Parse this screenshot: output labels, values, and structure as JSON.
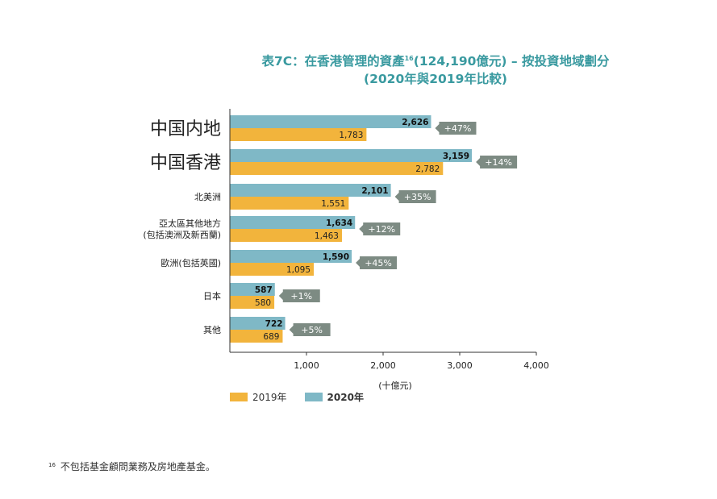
{
  "title": {
    "line1_pre": "表7C：在香港管理的資產",
    "line1_sup": "16",
    "line1_post": "(124,190億元) – 按投資地域劃分",
    "line2": "(2020年與2019年比較)"
  },
  "footnote": {
    "marker": "16",
    "text": "不包括基金顧問業務及房地產基金。"
  },
  "colors": {
    "series_2020": "#7fb8c6",
    "series_2019": "#f2b43c",
    "badge": "#7d8b83",
    "title": "#3a9aa0"
  },
  "chart_data": {
    "type": "bar",
    "orientation": "horizontal",
    "categories": [
      [
        "中国内地"
      ],
      [
        "中国香港"
      ],
      [
        "北美洲"
      ],
      [
        "亞太區其他地方",
        "(包括澳洲及新西蘭)"
      ],
      [
        "歐洲(包括英國)"
      ],
      [
        "日本"
      ],
      [
        "其他"
      ]
    ],
    "series": [
      {
        "name": "2020年",
        "values": [
          2626,
          3159,
          2101,
          1634,
          1590,
          587,
          722
        ],
        "labels": [
          "2,626",
          "3,159",
          "2,101",
          "1,634",
          "1,590",
          "587",
          "722"
        ]
      },
      {
        "name": "2019年",
        "values": [
          1783,
          2782,
          1551,
          1463,
          1095,
          580,
          689
        ],
        "labels": [
          "1,783",
          "2,782",
          "1,551",
          "1,463",
          "1,095",
          "580",
          "689"
        ]
      }
    ],
    "changes": [
      "+47%",
      "+14%",
      "+35%",
      "+12%",
      "+45%",
      "+1%",
      "+5%"
    ],
    "xlim": [
      0,
      4000
    ],
    "xticks": [
      1000,
      2000,
      3000,
      4000
    ],
    "xtick_labels": [
      "1,000",
      "2,000",
      "3,000",
      "4,000"
    ],
    "xlabel": "(十億元)",
    "legend": [
      "2019年",
      "2020年"
    ],
    "legend_placement": "bottom-left",
    "grid": false
  }
}
